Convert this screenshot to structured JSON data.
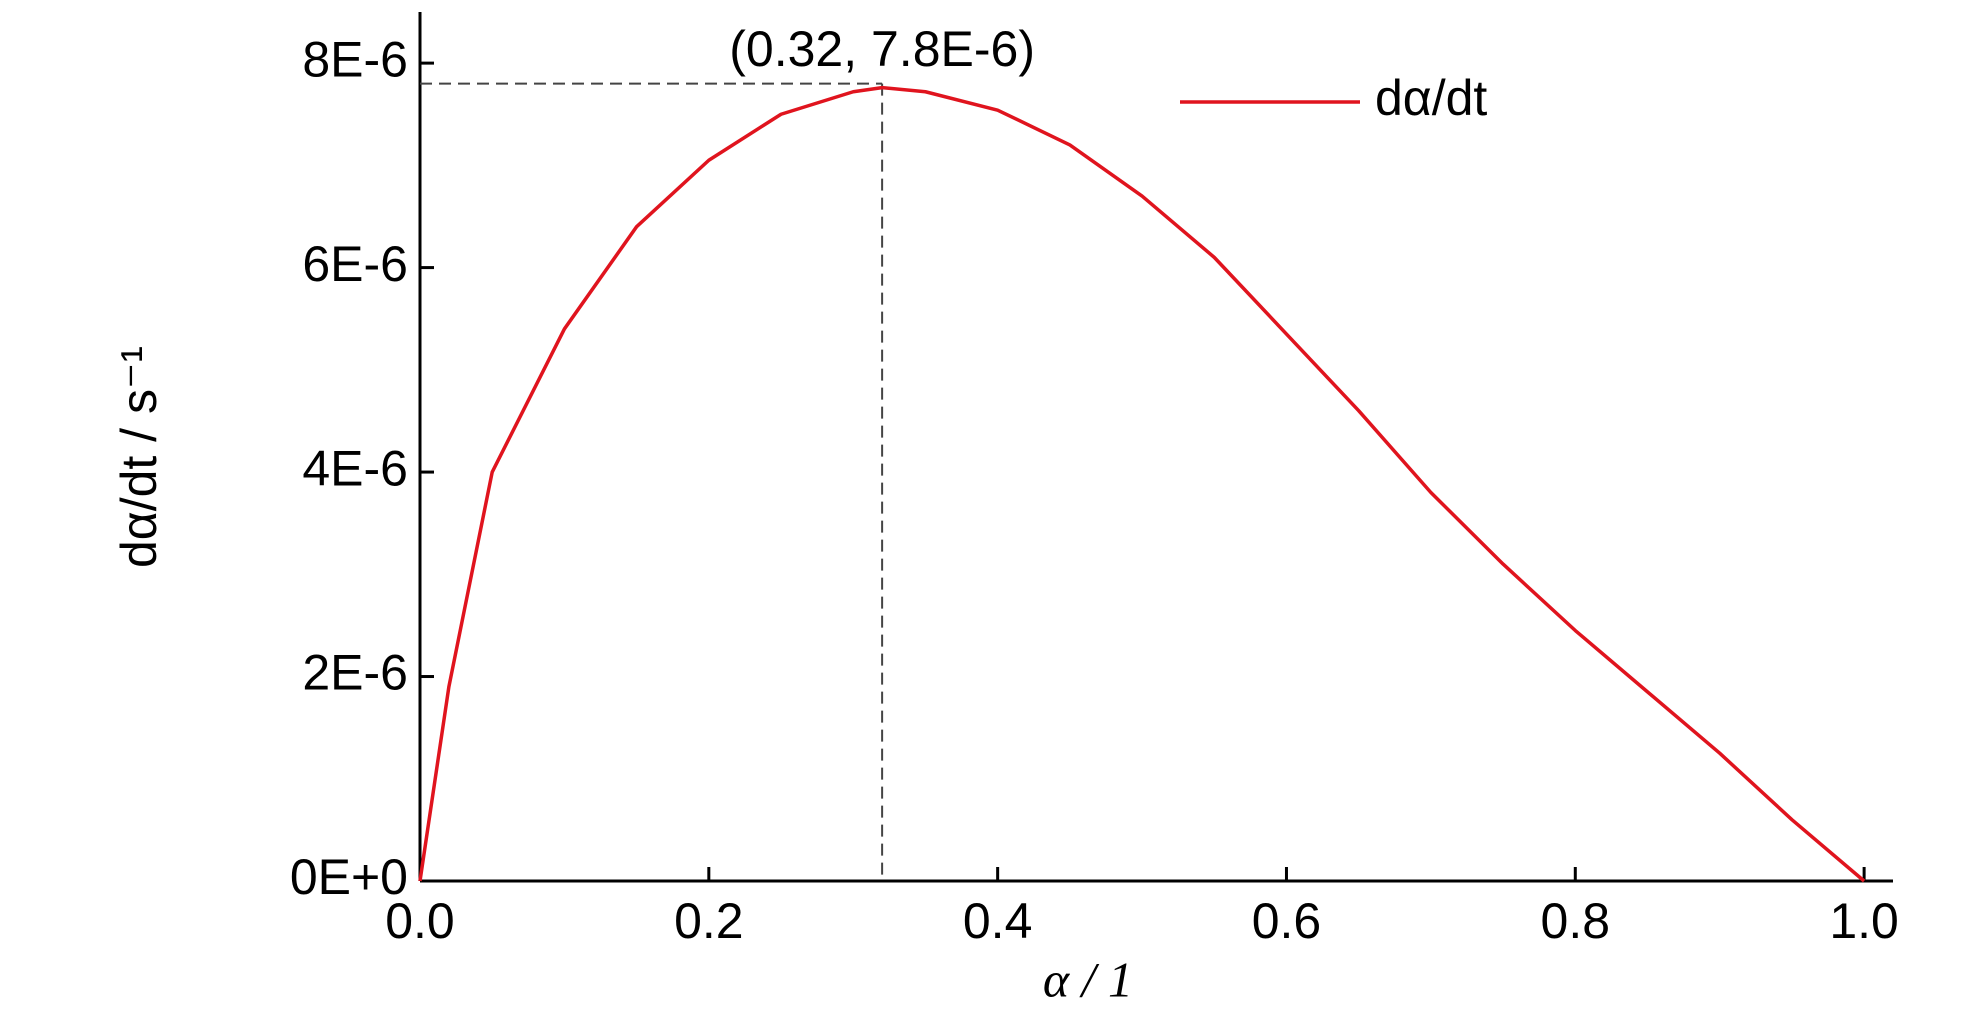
{
  "chart_data": {
    "type": "line",
    "x_label": "α / 1",
    "y_label": "dα/dt / s⁻¹",
    "x": [
      0,
      0.02,
      0.05,
      0.1,
      0.15,
      0.2,
      0.25,
      0.3,
      0.32,
      0.35,
      0.4,
      0.45,
      0.5,
      0.55,
      0.6,
      0.65,
      0.7,
      0.75,
      0.8,
      0.85,
      0.9,
      0.95,
      1.0
    ],
    "series": [
      {
        "name": "dα/dt",
        "color": "#e0141e",
        "values": [
          0,
          1.9e-06,
          4e-06,
          5.4e-06,
          6.4e-06,
          7.05e-06,
          7.5e-06,
          7.72e-06,
          7.76e-06,
          7.72e-06,
          7.54e-06,
          7.2e-06,
          6.7e-06,
          6.1e-06,
          5.35e-06,
          4.6e-06,
          3.8e-06,
          3.1e-06,
          2.45e-06,
          1.85e-06,
          1.25e-06,
          6e-07,
          0
        ]
      }
    ],
    "annotation": {
      "text": "(0.32, 7.8E-6)",
      "x": 0.32,
      "y": 7.8e-06
    },
    "xlim": [
      0,
      1.02
    ],
    "ylim": [
      0,
      8.5e-06
    ],
    "xticks": [
      {
        "value": 0,
        "label": "0.0"
      },
      0.2,
      0.4,
      0.6,
      0.8,
      {
        "value": 1,
        "label": "1.0"
      }
    ],
    "yticks": [
      {
        "value": 0,
        "label": "0E+0"
      },
      {
        "value": 2e-06,
        "label": "2E-6"
      },
      {
        "value": 4e-06,
        "label": "4E-6"
      },
      {
        "value": 6e-06,
        "label": "6E-6"
      },
      {
        "value": 8e-06,
        "label": "8E-6"
      }
    ],
    "legend": "upper right",
    "grid": false
  }
}
